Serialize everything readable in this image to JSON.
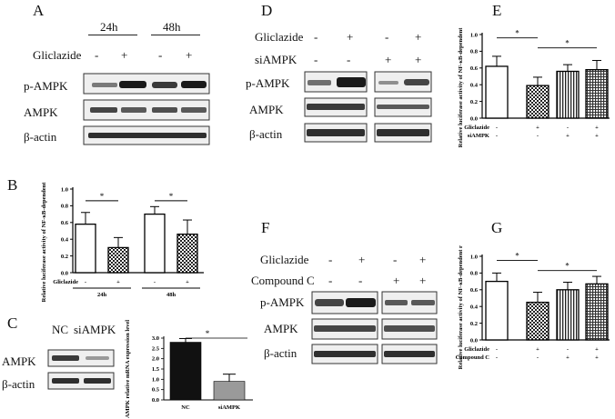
{
  "panels": {
    "A": {
      "letter": "A",
      "time_headers": [
        "24h",
        "48h"
      ],
      "treatment_label": "Gliclazide",
      "treatment_signs": [
        "-",
        "+",
        "-",
        "+"
      ],
      "rows": [
        "p-AMPK",
        "AMPK",
        "β-actin"
      ]
    },
    "D": {
      "letter": "D",
      "treatment_rows": [
        {
          "label": "Gliclazide",
          "signs": [
            "-",
            "+",
            "-",
            "+"
          ]
        },
        {
          "label": "siAMPK",
          "signs": [
            "-",
            "-",
            "+",
            "+"
          ]
        }
      ],
      "rows": [
        "p-AMPK",
        "AMPK",
        "β-actin"
      ]
    },
    "F": {
      "letter": "F",
      "treatment_rows": [
        {
          "label": "Gliclazide",
          "signs": [
            "-",
            "+",
            "-",
            "+"
          ]
        },
        {
          "label": "Compound C",
          "signs": [
            "-",
            "-",
            "+",
            "+"
          ]
        }
      ],
      "rows": [
        "p-AMPK",
        "AMPK",
        "β-actin"
      ]
    },
    "C": {
      "letter": "C",
      "col_headers": [
        "NC",
        "siAMPK"
      ],
      "rows": [
        "AMPK",
        "β-actin"
      ]
    },
    "B": {
      "letter": "B"
    },
    "E": {
      "letter": "E"
    },
    "G": {
      "letter": "G"
    }
  },
  "chart_data": [
    {
      "id": "B",
      "type": "bar",
      "ylabel": "Relative luciferase activity of NF-κB-dependent reporter",
      "ylim": [
        0,
        1.0
      ],
      "yticks": [
        "0.0",
        "0.2",
        "0.4",
        "0.6",
        "0.8",
        "1.0"
      ],
      "values": [
        0.58,
        0.3,
        0.7,
        0.46
      ],
      "errors": [
        0.14,
        0.12,
        0.09,
        0.17
      ],
      "patterns": [
        "open",
        "check",
        "open",
        "check"
      ],
      "treatment_rows": [
        {
          "label": "Gliclazide",
          "signs": [
            "-",
            "+",
            "-",
            "+"
          ]
        }
      ],
      "groups": [
        "24h",
        "48h"
      ],
      "significance": [
        "*",
        "*"
      ]
    },
    {
      "id": "E",
      "type": "bar",
      "ylabel": "Relative luciferase activity of NF-κB-dependent reporter",
      "ylim": [
        0,
        1.0
      ],
      "yticks": [
        "0.0",
        "0.2",
        "0.4",
        "0.6",
        "0.8",
        "1.0"
      ],
      "values": [
        0.62,
        0.39,
        0.56,
        0.58
      ],
      "errors": [
        0.12,
        0.1,
        0.08,
        0.11
      ],
      "patterns": [
        "open",
        "check",
        "vstripe",
        "grid"
      ],
      "treatment_rows": [
        {
          "label": "Gliclazide",
          "signs": [
            "-",
            "+",
            "-",
            "+"
          ]
        },
        {
          "label": "siAMPK",
          "signs": [
            "-",
            "-",
            "+",
            "+"
          ]
        }
      ],
      "significance": [
        "*",
        "*"
      ]
    },
    {
      "id": "G",
      "type": "bar",
      "ylabel": "Relative luciferase activity of NF-κB-dependent reporter",
      "ylim": [
        0,
        1.0
      ],
      "yticks": [
        "0.0",
        "0.2",
        "0.4",
        "0.6",
        "0.8",
        "1.0"
      ],
      "values": [
        0.7,
        0.45,
        0.6,
        0.67
      ],
      "errors": [
        0.1,
        0.12,
        0.09,
        0.09
      ],
      "patterns": [
        "open",
        "check",
        "vstripe",
        "grid"
      ],
      "treatment_rows": [
        {
          "label": "Gliclazide",
          "signs": [
            "-",
            "+",
            "-",
            "+"
          ]
        },
        {
          "label": "Compound C",
          "signs": [
            "-",
            "-",
            "+",
            "+"
          ]
        }
      ],
      "significance": [
        "*",
        "*"
      ]
    },
    {
      "id": "C",
      "type": "bar",
      "ylabel": "AMPK relative mRNA expression level",
      "ylim": [
        0,
        3
      ],
      "yticks": [
        "0.0",
        "0.5",
        "1.0",
        "1.5",
        "2.0",
        "2.5",
        "3.0"
      ],
      "categories": [
        "NC",
        "siAMPK"
      ],
      "values": [
        2.8,
        0.9
      ],
      "errors": [
        0.18,
        0.35
      ],
      "colors": [
        "#111111",
        "#9a9a9a"
      ],
      "significance": [
        "*"
      ]
    }
  ]
}
